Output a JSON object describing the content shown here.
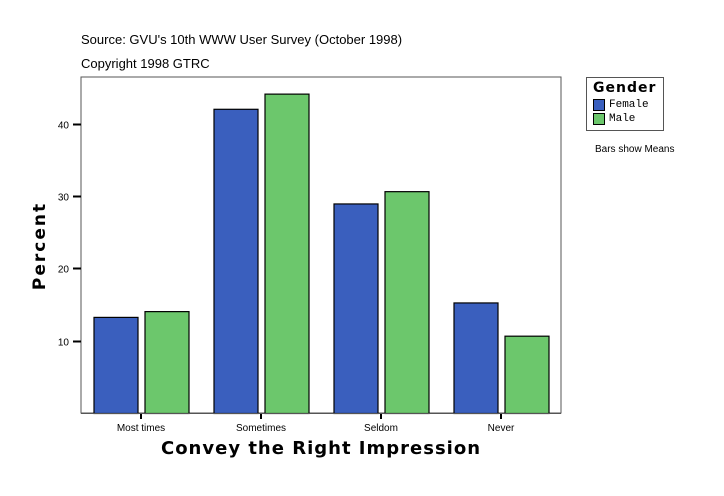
{
  "header": {
    "source": "Source: GVU's 10th WWW User Survey (October 1998)",
    "copyright": "Copyright 1998 GTRC"
  },
  "legend": {
    "title": "Gender",
    "items": [
      {
        "label": "Female",
        "color": "#3a5fbe"
      },
      {
        "label": "Male",
        "color": "#6cc76c"
      }
    ]
  },
  "note": "Bars show Means",
  "chart_data": {
    "type": "bar",
    "title": "",
    "xlabel": "Convey the Right Impression",
    "ylabel": "Percent",
    "categories": [
      "Most times",
      "Sometimes",
      "Seldom",
      "Never"
    ],
    "series": [
      {
        "name": "Female",
        "color": "#3a5fbe",
        "values": [
          13.3,
          42.1,
          29.0,
          15.3
        ]
      },
      {
        "name": "Male",
        "color": "#6cc76c",
        "values": [
          14.1,
          44.2,
          30.7,
          10.7
        ]
      }
    ],
    "yticks": [
      10,
      20,
      30,
      40
    ],
    "ylim": [
      0,
      46.5
    ],
    "grid": false,
    "legend_position": "right"
  }
}
